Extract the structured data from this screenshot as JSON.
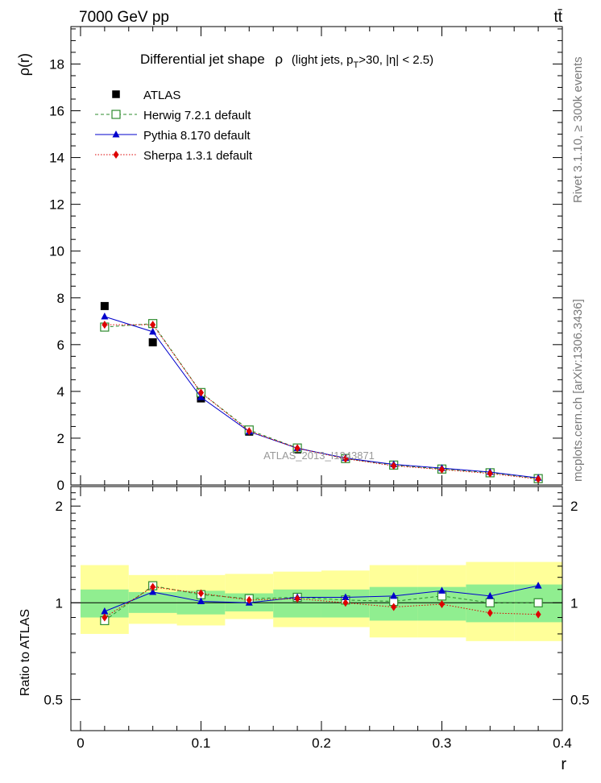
{
  "header": {
    "energy": "7000 GeV pp",
    "process": "tt̄"
  },
  "side_labels": {
    "rivet": "Rivet 3.1.10, ≥ 300k events",
    "mcplots": "mcplots.cern.ch [arXiv:1306.3436]"
  },
  "watermark": "ATLAS_2013_I1243871",
  "chart_data": [
    {
      "panel": "main",
      "type": "scatter",
      "title_main": "Differential jet shape",
      "title_rho": "ρ",
      "title_sel_a": "(light jets, p",
      "title_sel_sub": "T",
      "title_sel_b": ">30, |η| < 2.5)",
      "xlabel": "r",
      "ylabel": "ρ(r)",
      "xlim": [
        -0.008,
        0.4
      ],
      "ylim": [
        0,
        19.6
      ],
      "x_ticks": [
        0,
        0.1,
        0.2,
        0.3,
        0.4
      ],
      "x_tick_labels": [
        "0",
        "0.1",
        "0.2",
        "0.3",
        "0.4"
      ],
      "y_ticks": [
        0,
        2,
        4,
        6,
        8,
        10,
        12,
        14,
        16,
        18
      ],
      "y_tick_labels": [
        "0",
        "2",
        "4",
        "6",
        "8",
        "10",
        "12",
        "14",
        "16",
        "18"
      ],
      "grid": false,
      "legend_position": "top-left",
      "x": [
        0.02,
        0.06,
        0.1,
        0.14,
        0.18,
        0.22,
        0.26,
        0.3,
        0.34,
        0.38
      ],
      "series": [
        {
          "name": "ATLAS",
          "color": "#000000",
          "marker": "square-filled",
          "values": [
            7.65,
            6.1,
            3.7,
            2.28,
            1.52,
            1.12,
            0.85,
            0.67,
            0.52,
            0.27
          ]
        },
        {
          "name": "Herwig 7.2.1 default",
          "color": "#2e8b2e",
          "marker": "square-open",
          "line": "dashed",
          "values": [
            6.75,
            6.9,
            3.95,
            2.35,
            1.58,
            1.13,
            0.85,
            0.68,
            0.52,
            0.27
          ]
        },
        {
          "name": "Pythia 8.170 default",
          "color": "#0000cc",
          "marker": "triangle",
          "line": "solid",
          "values": [
            7.2,
            6.55,
            3.75,
            2.28,
            1.57,
            1.15,
            0.88,
            0.72,
            0.55,
            0.3
          ]
        },
        {
          "name": "Sherpa 1.3.1 default",
          "color": "#dd0000",
          "marker": "diamond",
          "line": "dotted",
          "values": [
            6.85,
            6.85,
            3.95,
            2.3,
            1.57,
            1.12,
            0.82,
            0.66,
            0.49,
            0.25
          ]
        }
      ]
    },
    {
      "panel": "ratio",
      "type": "scatter",
      "ylabel": "Ratio to ATLAS",
      "ylim": [
        0.4,
        2.3
      ],
      "y_ticks": [
        0.5,
        1,
        2
      ],
      "y_tick_labels": [
        "0.5",
        "1",
        "2"
      ],
      "bin_edges": [
        0.0,
        0.04,
        0.08,
        0.12,
        0.16,
        0.2,
        0.24,
        0.28,
        0.32,
        0.36,
        0.4
      ],
      "band_inner": [
        [
          0.9,
          1.1
        ],
        [
          0.93,
          1.08
        ],
        [
          0.92,
          1.09
        ],
        [
          0.94,
          1.07
        ],
        [
          0.9,
          1.1
        ],
        [
          0.9,
          1.1
        ],
        [
          0.88,
          1.12
        ],
        [
          0.88,
          1.12
        ],
        [
          0.87,
          1.14
        ],
        [
          0.87,
          1.14
        ]
      ],
      "band_outer": [
        [
          0.8,
          1.31
        ],
        [
          0.86,
          1.22
        ],
        [
          0.85,
          1.22
        ],
        [
          0.89,
          1.23
        ],
        [
          0.84,
          1.25
        ],
        [
          0.84,
          1.26
        ],
        [
          0.78,
          1.31
        ],
        [
          0.78,
          1.31
        ],
        [
          0.76,
          1.34
        ],
        [
          0.76,
          1.34
        ]
      ],
      "band_colors": {
        "inner": "#90ee90",
        "outer": "#ffff99"
      },
      "x": [
        0.02,
        0.06,
        0.1,
        0.14,
        0.18,
        0.22,
        0.26,
        0.3,
        0.34,
        0.38
      ],
      "series": [
        {
          "name": "Herwig 7.2.1 default",
          "color": "#2e8b2e",
          "marker": "square-open",
          "line": "dashed",
          "values": [
            0.88,
            1.13,
            1.06,
            1.03,
            1.04,
            1.02,
            1.01,
            1.05,
            1.0,
            1.0
          ]
        },
        {
          "name": "Pythia 8.170 default",
          "color": "#0000cc",
          "marker": "triangle",
          "line": "solid",
          "values": [
            0.94,
            1.08,
            1.01,
            1.0,
            1.04,
            1.04,
            1.05,
            1.09,
            1.05,
            1.13
          ]
        },
        {
          "name": "Sherpa 1.3.1 default",
          "color": "#dd0000",
          "marker": "diamond",
          "line": "dotted",
          "values": [
            0.9,
            1.12,
            1.07,
            1.02,
            1.03,
            1.0,
            0.97,
            0.99,
            0.93,
            0.92
          ]
        }
      ]
    }
  ]
}
